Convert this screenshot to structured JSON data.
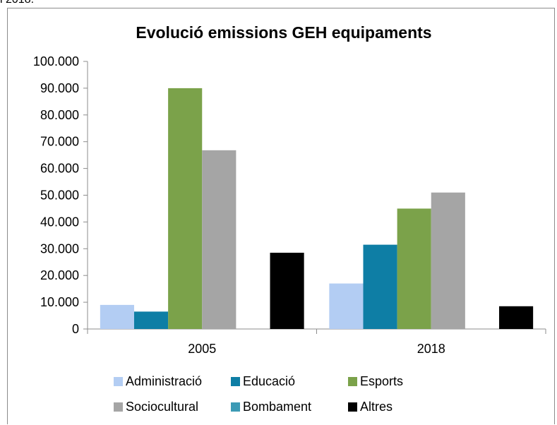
{
  "page": {
    "top_text": "i 2018."
  },
  "chart_data": {
    "type": "bar",
    "title": "Evolució emissions GEH equipaments",
    "categories": [
      "2005",
      "2018"
    ],
    "ylim": [
      0,
      100000
    ],
    "yticks": [
      "0",
      "10.000",
      "20.000",
      "30.000",
      "40.000",
      "50.000",
      "60.000",
      "70.000",
      "80.000",
      "90.000",
      "100.000"
    ],
    "ytick_values": [
      0,
      10000,
      20000,
      30000,
      40000,
      50000,
      60000,
      70000,
      80000,
      90000,
      100000
    ],
    "grid": false,
    "legend_position": "bottom",
    "series": [
      {
        "name": "Administració",
        "color": "#b3cdf3",
        "values": [
          9000,
          17000
        ]
      },
      {
        "name": "Educació",
        "color": "#0e7ea5",
        "values": [
          6500,
          31500
        ]
      },
      {
        "name": "Esports",
        "color": "#7ba24a",
        "values": [
          90000,
          45000
        ]
      },
      {
        "name": "Sociocultural",
        "color": "#a5a5a5",
        "values": [
          66800,
          51000
        ]
      },
      {
        "name": "Bombament",
        "color": "#3c9ab5",
        "values": [
          0,
          0
        ]
      },
      {
        "name": "Altres",
        "color": "#000000",
        "values": [
          28500,
          8500
        ]
      }
    ]
  }
}
